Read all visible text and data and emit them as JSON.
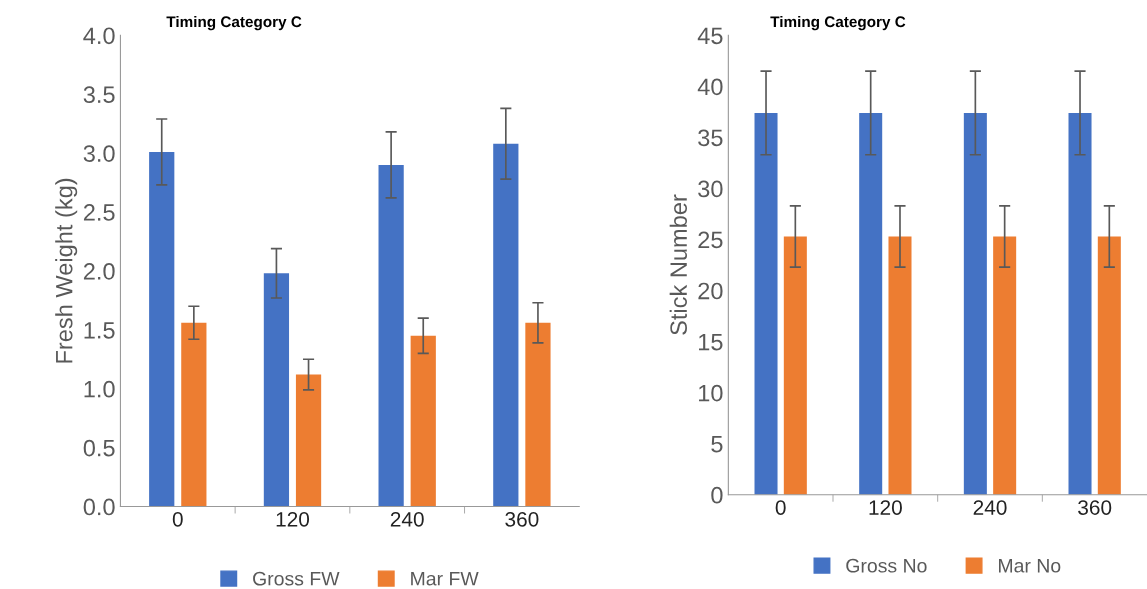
{
  "chart_data": [
    {
      "type": "bar",
      "title": "Timing Category C",
      "ylabel": "Fresh Weight (kg)",
      "categories": [
        "0",
        "120",
        "240",
        "360"
      ],
      "series": [
        {
          "name": "Gross FW",
          "color": "#4472c4",
          "values": [
            3.01,
            1.98,
            2.9,
            3.08
          ],
          "errors": [
            0.28,
            0.21,
            0.28,
            0.3
          ]
        },
        {
          "name": "Mar FW",
          "color": "#ed7d31",
          "values": [
            1.56,
            1.12,
            1.45,
            1.56
          ],
          "errors": [
            0.14,
            0.13,
            0.15,
            0.17
          ]
        }
      ],
      "ylim": [
        0,
        4
      ],
      "yticks": [
        {
          "value": 0,
          "label": "0.0"
        },
        {
          "value": 0.5,
          "label": "0.5"
        },
        {
          "value": 1,
          "label": "1.0"
        },
        {
          "value": 1.5,
          "label": "1.5"
        },
        {
          "value": 2,
          "label": "2.0"
        },
        {
          "value": 2.5,
          "label": "2.5"
        },
        {
          "value": 3,
          "label": "3.0"
        },
        {
          "value": 3.5,
          "label": "3.5"
        },
        {
          "value": 4,
          "label": "4.0"
        }
      ],
      "grid": false,
      "legend": "bottom"
    },
    {
      "type": "bar",
      "title": "Timing Category C",
      "ylabel": "Stick Number",
      "categories": [
        "0",
        "120",
        "240",
        "360"
      ],
      "series": [
        {
          "name": "Gross No",
          "color": "#4472c4",
          "values": [
            37.4,
            37.4,
            37.4,
            37.4
          ],
          "errors": [
            4.1,
            4.1,
            4.1,
            4.1
          ]
        },
        {
          "name": "Mar No",
          "color": "#ed7d31",
          "values": [
            25.3,
            25.3,
            25.3,
            25.3
          ],
          "errors": [
            3.0,
            3.0,
            3.0,
            3.0
          ]
        }
      ],
      "ylim": [
        0,
        45
      ],
      "yticks": [
        0,
        5,
        10,
        15,
        20,
        25,
        30,
        35,
        40,
        45
      ],
      "grid": false,
      "legend": "bottom"
    }
  ]
}
